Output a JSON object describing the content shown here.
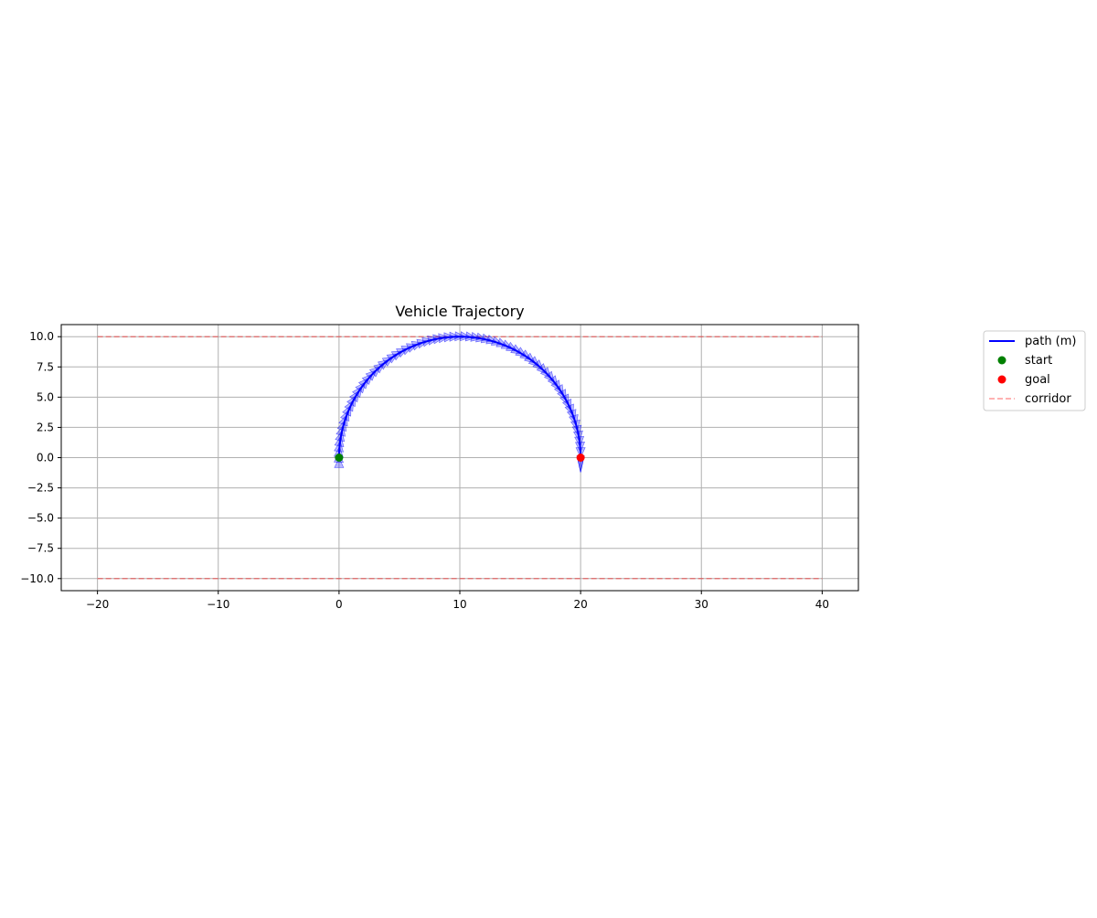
{
  "chart_data": {
    "type": "line",
    "title": "Vehicle Trajectory",
    "xlabel": "",
    "ylabel": "",
    "xlim": [
      -23,
      43
    ],
    "ylim": [
      -11,
      11
    ],
    "xticks": [
      -20,
      -10,
      0,
      10,
      20,
      30,
      40
    ],
    "yticks": [
      -10.0,
      -7.5,
      -5.0,
      -2.5,
      0.0,
      2.5,
      5.0,
      7.5,
      10.0
    ],
    "xtick_labels": [
      "−20",
      "−10",
      "0",
      "10",
      "20",
      "30",
      "40"
    ],
    "ytick_labels": [
      "−10.0",
      "−7.5",
      "−5.0",
      "−2.5",
      "0.0",
      "2.5",
      "5.0",
      "7.5",
      "10.0"
    ],
    "grid": true,
    "legend_position": "outside-right",
    "series": [
      {
        "name": "path (m)",
        "kind": "line",
        "color": "#0000ff",
        "arc": {
          "center": [
            10,
            0
          ],
          "radius": 10,
          "from_deg": 180,
          "to_deg": 0
        },
        "heading_arrows": true
      },
      {
        "name": "start",
        "kind": "marker",
        "color": "#008000",
        "x": [
          0
        ],
        "y": [
          0
        ]
      },
      {
        "name": "goal",
        "kind": "marker",
        "color": "#ff0000",
        "x": [
          20
        ],
        "y": [
          0
        ]
      },
      {
        "name": "corridor",
        "kind": "dashed",
        "color": "#ff0000",
        "lines": [
          {
            "x": [
              -20,
              40
            ],
            "y": [
              10,
              10
            ]
          },
          {
            "x": [
              -20,
              40
            ],
            "y": [
              -10,
              -10
            ]
          }
        ]
      }
    ]
  }
}
